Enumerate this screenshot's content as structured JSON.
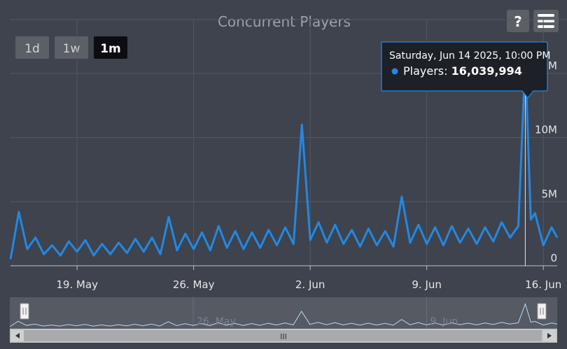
{
  "chart_data": {
    "type": "line",
    "title": "Concurrent Players",
    "xlabel": "",
    "ylabel": "",
    "series": [
      {
        "name": "Players",
        "color": "#2587e0",
        "x": [
          "2025-05-15T00:00",
          "2025-05-15T12:00",
          "2025-05-16T00:00",
          "2025-05-16T12:00",
          "2025-05-17T00:00",
          "2025-05-17T12:00",
          "2025-05-18T00:00",
          "2025-05-18T12:00",
          "2025-05-19T00:00",
          "2025-05-19T12:00",
          "2025-05-20T00:00",
          "2025-05-20T12:00",
          "2025-05-21T00:00",
          "2025-05-21T12:00",
          "2025-05-22T00:00",
          "2025-05-22T12:00",
          "2025-05-23T00:00",
          "2025-05-23T12:00",
          "2025-05-24T00:00",
          "2025-05-24T12:00",
          "2025-05-25T00:00",
          "2025-05-25T12:00",
          "2025-05-26T00:00",
          "2025-05-26T12:00",
          "2025-05-27T00:00",
          "2025-05-27T12:00",
          "2025-05-28T00:00",
          "2025-05-28T12:00",
          "2025-05-29T00:00",
          "2025-05-29T12:00",
          "2025-05-30T00:00",
          "2025-05-30T12:00",
          "2025-05-31T00:00",
          "2025-05-31T12:00",
          "2025-06-01T00:00",
          "2025-06-01T12:00",
          "2025-06-02T00:00",
          "2025-06-02T12:00",
          "2025-06-03T00:00",
          "2025-06-03T12:00",
          "2025-06-04T00:00",
          "2025-06-04T12:00",
          "2025-06-05T00:00",
          "2025-06-05T12:00",
          "2025-06-06T00:00",
          "2025-06-06T12:00",
          "2025-06-07T00:00",
          "2025-06-07T12:00",
          "2025-06-08T00:00",
          "2025-06-08T12:00",
          "2025-06-09T00:00",
          "2025-06-09T12:00",
          "2025-06-10T00:00",
          "2025-06-10T12:00",
          "2025-06-11T00:00",
          "2025-06-11T12:00",
          "2025-06-12T00:00",
          "2025-06-12T12:00",
          "2025-06-13T00:00",
          "2025-06-13T12:00",
          "2025-06-14T00:00",
          "2025-06-14T12:00",
          "2025-06-14T22:00",
          "2025-06-15T06:00",
          "2025-06-15T12:00",
          "2025-06-16T00:00",
          "2025-06-16T12:00",
          "2025-06-16T20:00"
        ],
        "values": [
          0.5,
          4.2,
          1.3,
          2.2,
          0.9,
          1.6,
          0.8,
          1.9,
          1.1,
          2.0,
          0.8,
          1.7,
          0.9,
          1.8,
          1.0,
          2.1,
          1.1,
          2.2,
          0.9,
          3.8,
          1.2,
          2.5,
          1.3,
          2.6,
          1.2,
          3.1,
          1.4,
          2.7,
          1.3,
          2.6,
          1.4,
          2.8,
          1.6,
          3.0,
          1.7,
          11.0,
          2.0,
          3.4,
          1.8,
          3.2,
          1.7,
          2.8,
          1.5,
          2.9,
          1.6,
          2.7,
          1.5,
          5.4,
          1.8,
          3.2,
          1.7,
          3.0,
          1.6,
          3.1,
          1.8,
          2.9,
          1.7,
          3.0,
          1.9,
          3.4,
          2.2,
          3.1,
          16.039994,
          3.6,
          4.1,
          1.6,
          3.0,
          2.2
        ]
      }
    ],
    "yticks": [
      {
        "label": "0",
        "value": 0
      },
      {
        "label": "5M",
        "value": 5
      },
      {
        "label": "10M",
        "value": 10
      },
      {
        "label": "15M",
        "value": 15
      }
    ],
    "ylim": [
      0,
      19.2
    ],
    "xticks": [
      {
        "label": "19. May",
        "date": "2025-05-19"
      },
      {
        "label": "26. May",
        "date": "2025-05-26"
      },
      {
        "label": "2. Jun",
        "date": "2025-06-02"
      },
      {
        "label": "9. Jun",
        "date": "2025-06-09"
      },
      {
        "label": "16. Jun",
        "date": "2025-06-16"
      }
    ],
    "xlim": [
      "2025-05-15T00:00",
      "2025-06-16T20:00"
    ],
    "navigator_labels": [
      {
        "label": "26. May",
        "date": "2025-05-26"
      },
      {
        "label": "9. Jun",
        "date": "2025-06-09"
      }
    ],
    "grid": true,
    "legend": "none",
    "tooltip": {
      "header": "Saturday, Jun 14 2025, 10:00 PM",
      "series_label": "Players: ",
      "value_label": "16,039,994",
      "x": "2025-06-14T22:00",
      "y": 16.039994
    }
  },
  "range_buttons": [
    {
      "label": "1d",
      "selected": false
    },
    {
      "label": "1w",
      "selected": false
    },
    {
      "label": "1m",
      "selected": true
    }
  ],
  "help_button_label": "?",
  "menu_icon": "hamburger-menu-icon",
  "scrollbar_grip": "III",
  "colors": {
    "background": "#3e434d",
    "series": "#2587e0",
    "grid": "#535862",
    "tooltip_bg": "#1d2026",
    "tooltip_border": "#2587e0",
    "button_selected": "#0b0d10"
  }
}
